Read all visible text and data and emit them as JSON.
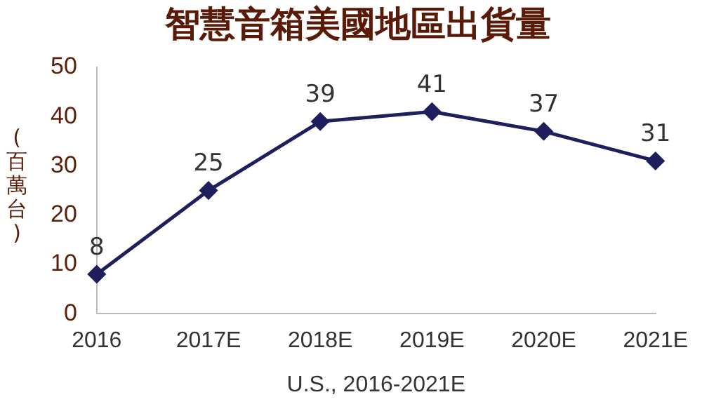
{
  "chart_data": {
    "type": "line",
    "title": "智慧音箱美國地區出貨量",
    "xlabel": "U.S., 2016-2021E",
    "ylabel": "(百萬台)",
    "categories": [
      "2016",
      "2017E",
      "2018E",
      "2019E",
      "2020E",
      "2021E"
    ],
    "series": [
      {
        "color": "#1f1f5e",
        "values": [
          8,
          25,
          39,
          41,
          37,
          31
        ]
      }
    ],
    "ylim": [
      0,
      50
    ],
    "yticks": [
      0,
      10,
      20,
      30,
      40,
      50
    ],
    "grid": false,
    "legend": false,
    "marker": "diamond",
    "line_style": "solid",
    "data_labels": true
  }
}
